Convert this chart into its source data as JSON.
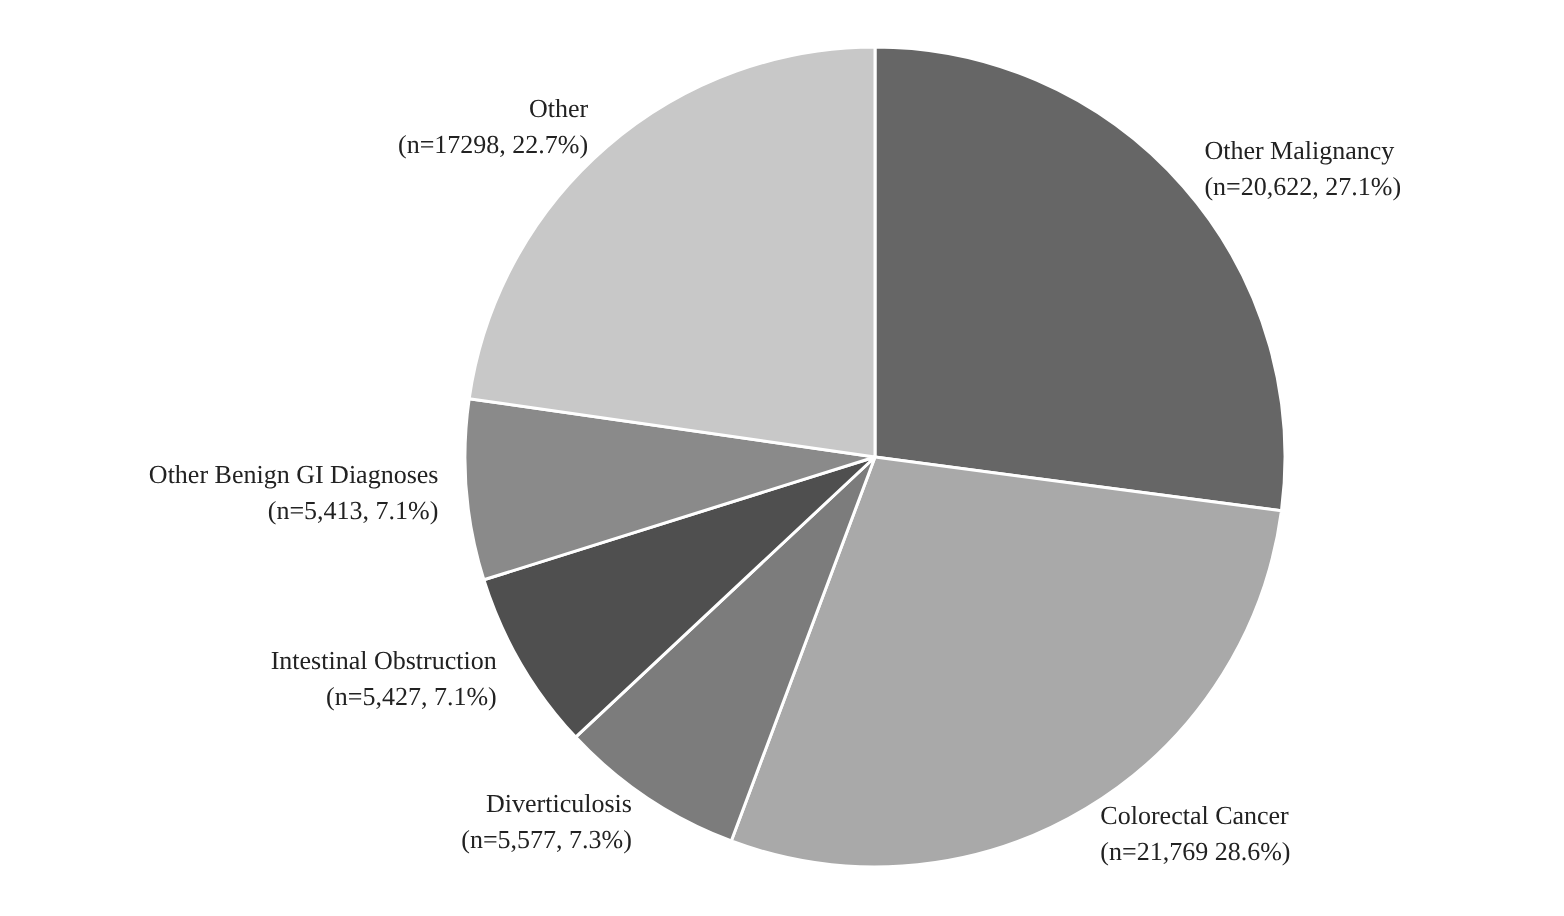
{
  "chart_data": {
    "type": "pie",
    "categories": [
      "Other Malignancy",
      "Colorectal Cancer",
      "Diverticulosis",
      "Intestinal Obstruction",
      "Other Benign GI Diagnoses",
      "Other"
    ],
    "values": [
      20622,
      21769,
      5577,
      5427,
      5413,
      17298
    ],
    "value_labels": [
      "(n=20,622, 27.1%)",
      "(n=21,769 28.6%)",
      "(n=5,577, 7.3%)",
      "(n=5,427, 7.1%)",
      "(n=5,413, 7.1%)",
      "(n=17298, 22.7%)"
    ],
    "colors": [
      "#666666",
      "#a9a9a9",
      "#7c7c7c",
      "#4f4f4f",
      "#8a8a8a",
      "#c8c8c8"
    ],
    "legend": false
  }
}
